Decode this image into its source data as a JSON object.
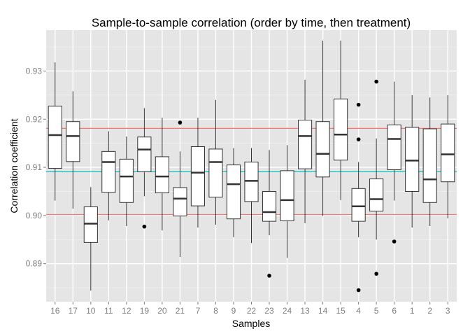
{
  "chart_data": {
    "type": "boxplot",
    "title": "Sample-to-sample correlation (order by time, then treatment)",
    "xlabel": "Samples",
    "ylabel": "Correlation coefficient",
    "ylim": [
      0.8821,
      0.9385
    ],
    "yticks": [
      0.89,
      0.9,
      0.91,
      0.92,
      0.93
    ],
    "ytick_labels": [
      "0.89",
      "0.90",
      "0.91",
      "0.92",
      "0.93"
    ],
    "grid": true,
    "colors": {
      "panel": "#e5e5e5",
      "grid": "#ffffff",
      "box_fill": "#ffffff",
      "box_stroke": "#333333",
      "hline_red": "#f8766d",
      "hline_teal": "#00bfc4"
    },
    "reference_lines": [
      {
        "y": 0.9181,
        "color": "#f8766d"
      },
      {
        "y": 0.9091,
        "color": "#00bfc4"
      },
      {
        "y": 0.9002,
        "color": "#f8766d"
      }
    ],
    "categories": [
      "16",
      "17",
      "10",
      "11",
      "12",
      "19",
      "20",
      "21",
      "7",
      "8",
      "9",
      "22",
      "23",
      "24",
      "13",
      "14",
      "15",
      "4",
      "5",
      "6",
      "1",
      "2",
      "3"
    ],
    "boxes": [
      {
        "label": "16",
        "min": 0.9031,
        "q1": 0.9098,
        "median": 0.9167,
        "q3": 0.9227,
        "max": 0.9318,
        "outliers": []
      },
      {
        "label": "17",
        "min": 0.9014,
        "q1": 0.9112,
        "median": 0.9165,
        "q3": 0.9195,
        "max": 0.9258,
        "outliers": []
      },
      {
        "label": "10",
        "min": 0.8844,
        "q1": 0.8944,
        "median": 0.8983,
        "q3": 0.9018,
        "max": 0.9059,
        "outliers": []
      },
      {
        "label": "11",
        "min": 0.899,
        "q1": 0.9048,
        "median": 0.9111,
        "q3": 0.9133,
        "max": 0.9175,
        "outliers": []
      },
      {
        "label": "12",
        "min": 0.8978,
        "q1": 0.9027,
        "median": 0.9081,
        "q3": 0.9117,
        "max": 0.9164,
        "outliers": []
      },
      {
        "label": "19",
        "min": 0.904,
        "q1": 0.9091,
        "median": 0.9137,
        "q3": 0.9163,
        "max": 0.9223,
        "outliers": [
          0.8977
        ]
      },
      {
        "label": "20",
        "min": 0.8969,
        "q1": 0.9047,
        "median": 0.9081,
        "q3": 0.9122,
        "max": 0.9203,
        "outliers": []
      },
      {
        "label": "21",
        "min": 0.8914,
        "q1": 0.8999,
        "median": 0.9035,
        "q3": 0.9058,
        "max": 0.9133,
        "outliers": [
          0.9193
        ]
      },
      {
        "label": "7",
        "min": 0.8975,
        "q1": 0.902,
        "median": 0.9089,
        "q3": 0.9143,
        "max": 0.9203,
        "outliers": []
      },
      {
        "label": "8",
        "min": 0.8981,
        "q1": 0.9038,
        "median": 0.9111,
        "q3": 0.9138,
        "max": 0.924,
        "outliers": []
      },
      {
        "label": "9",
        "min": 0.8955,
        "q1": 0.8993,
        "median": 0.9065,
        "q3": 0.9105,
        "max": 0.914,
        "outliers": []
      },
      {
        "label": "22",
        "min": 0.8943,
        "q1": 0.9029,
        "median": 0.9072,
        "q3": 0.9111,
        "max": 0.914,
        "outliers": []
      },
      {
        "label": "23",
        "min": 0.8959,
        "q1": 0.8988,
        "median": 0.9007,
        "q3": 0.905,
        "max": 0.9136,
        "outliers": [
          0.8875
        ]
      },
      {
        "label": "24",
        "min": 0.8912,
        "q1": 0.8989,
        "median": 0.9032,
        "q3": 0.9093,
        "max": 0.9146,
        "outliers": []
      },
      {
        "label": "13",
        "min": 0.8984,
        "q1": 0.9097,
        "median": 0.9165,
        "q3": 0.9198,
        "max": 0.9282,
        "outliers": []
      },
      {
        "label": "14",
        "min": 0.8999,
        "q1": 0.908,
        "median": 0.9128,
        "q3": 0.9195,
        "max": 0.9363,
        "outliers": []
      },
      {
        "label": "15",
        "min": 0.9032,
        "q1": 0.9115,
        "median": 0.9168,
        "q3": 0.9242,
        "max": 0.9363,
        "outliers": []
      },
      {
        "label": "4",
        "min": 0.8955,
        "q1": 0.8988,
        "median": 0.9019,
        "q3": 0.9056,
        "max": 0.9111,
        "outliers": [
          0.923,
          0.9158,
          0.8845
        ]
      },
      {
        "label": "5",
        "min": 0.895,
        "q1": 0.9009,
        "median": 0.9034,
        "q3": 0.9076,
        "max": 0.916,
        "outliers": [
          0.9278,
          0.8879
        ]
      },
      {
        "label": "6",
        "min": 0.9031,
        "q1": 0.9095,
        "median": 0.9159,
        "q3": 0.9188,
        "max": 0.9278,
        "outliers": [
          0.8946
        ]
      },
      {
        "label": "1",
        "min": 0.8975,
        "q1": 0.905,
        "median": 0.9114,
        "q3": 0.9183,
        "max": 0.925,
        "outliers": []
      },
      {
        "label": "2",
        "min": 0.8978,
        "q1": 0.9027,
        "median": 0.9075,
        "q3": 0.918,
        "max": 0.9245,
        "outliers": []
      },
      {
        "label": "3",
        "min": 0.8994,
        "q1": 0.907,
        "median": 0.9127,
        "q3": 0.919,
        "max": 0.925,
        "outliers": []
      }
    ]
  }
}
